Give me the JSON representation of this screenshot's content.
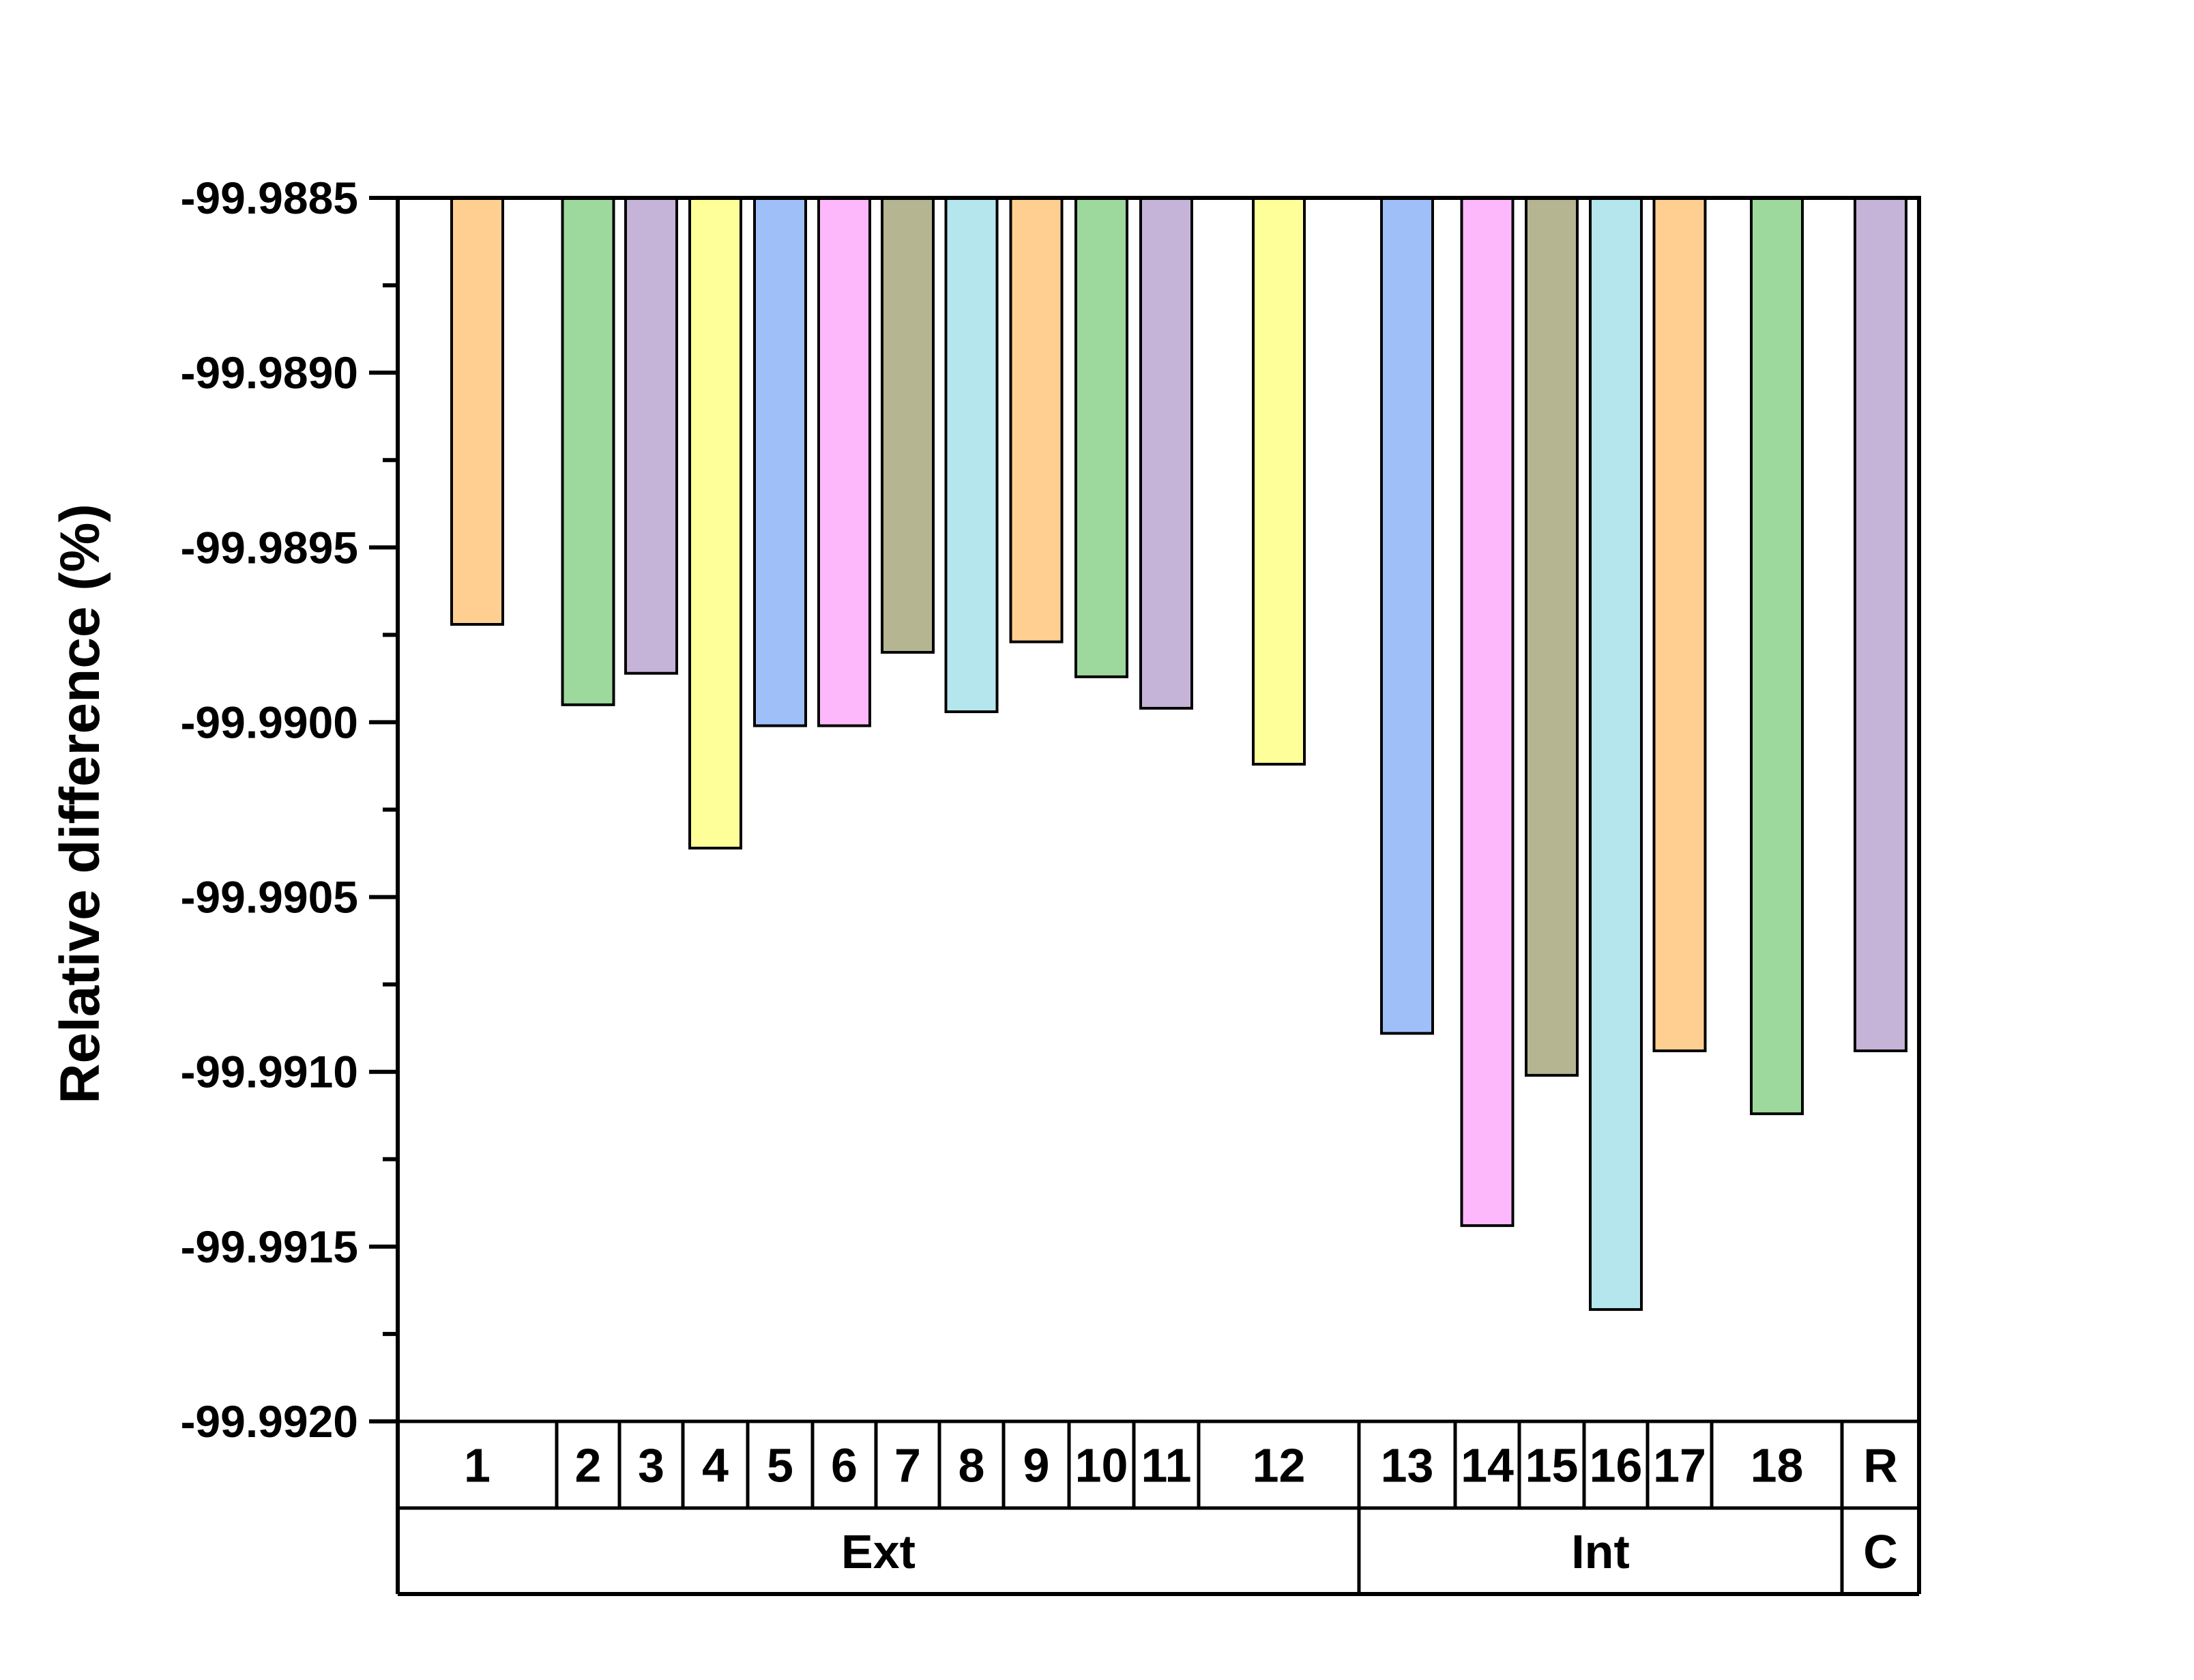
{
  "chart_data": {
    "type": "bar",
    "title": "",
    "xlabel": "",
    "ylabel": "Relative difference (%)",
    "ylim": [
      -99.992,
      -99.9885
    ],
    "y_ticks": [
      "-99.9885",
      "-99.9890",
      "-99.9895",
      "-99.9900",
      "-99.9905",
      "-99.9910",
      "-99.9915",
      "-99.9920"
    ],
    "y_tick_values": [
      -99.9885,
      -99.989,
      -99.9895,
      -99.99,
      -99.9905,
      -99.991,
      -99.9915,
      -99.992
    ],
    "bars_hang_from": -99.9885,
    "grid": false,
    "legend": "none",
    "categories": [
      "1",
      "2",
      "3",
      "4",
      "5",
      "6",
      "7",
      "8",
      "9",
      "10",
      "11",
      "12",
      "13",
      "14",
      "15",
      "16",
      "17",
      "18",
      "R"
    ],
    "values": [
      -99.98972,
      -99.98995,
      -99.98986,
      -99.99036,
      -99.99001,
      -99.99001,
      -99.9898,
      -99.98997,
      -99.98977,
      -99.98987,
      -99.98996,
      -99.99012,
      -99.99089,
      -99.99144,
      -99.99101,
      -99.99168,
      -99.99094,
      -99.99112,
      -99.99094
    ],
    "colors": [
      "#FFCF91",
      "#9DD99C",
      "#C6B4D8",
      "#FFFF99",
      "#9FBFF9",
      "#FDB8FB",
      "#B5B592",
      "#B5E6EE",
      "#FFCF91",
      "#9DD99C",
      "#C6B4D8",
      "#FFFF99",
      "#9FBFF9",
      "#FDB8FB",
      "#B5B592",
      "#B5E6EE",
      "#FFCF91",
      "#9DD99C",
      "#C6B4D8"
    ],
    "groups": [
      {
        "label": "Ext",
        "members": [
          "1",
          "2",
          "3",
          "4",
          "5",
          "6",
          "7",
          "8",
          "9",
          "10",
          "11",
          "12"
        ]
      },
      {
        "label": "Int",
        "members": [
          "13",
          "14",
          "15",
          "16",
          "17",
          "18"
        ]
      },
      {
        "label": "C",
        "members": [
          "R"
        ]
      }
    ]
  }
}
